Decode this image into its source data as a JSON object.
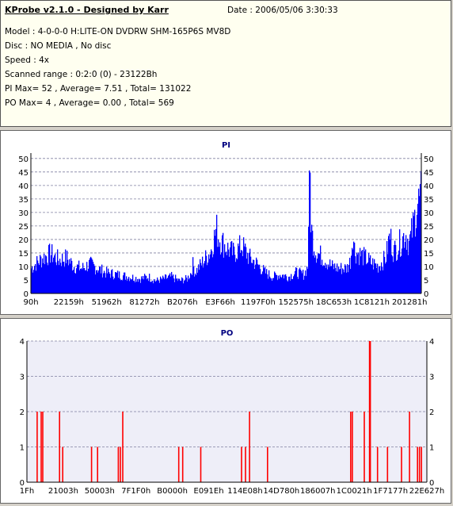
{
  "info": {
    "title": "KProbe v2.1.0 - Designed by Karr",
    "date": "Date : 2006/05/06 3:30:33",
    "lines": [
      "Model : 4-0-0-0 H:LITE-ON DVDRW SHM-165P6S MV8D",
      "Disc : NO MEDIA , No disc",
      "Speed : 4x",
      "Scanned range : 0:2:0 (0) - 23122Bh",
      "PI Max= 52 , Average= 7.51 , Total= 131022",
      "PO Max= 4 , Average= 0.00 , Total= 569"
    ]
  },
  "colors": {
    "pi": "#0000ff",
    "po": "#ff0000",
    "grid": "#8080a0",
    "plot_bg_po": "#eeeef8"
  },
  "chart_data": [
    {
      "type": "bar",
      "title": "PI",
      "ylim": [
        0,
        52
      ],
      "yticks": [
        0,
        5,
        10,
        15,
        20,
        25,
        30,
        35,
        40,
        45,
        50
      ],
      "xtick_labels": [
        "90h",
        "22159h",
        "51962h",
        "81272h",
        "B2076h",
        "E3F66h",
        "1197F0h",
        "152575h",
        "18C653h",
        "1C8121h",
        "201281h"
      ],
      "grid": true,
      "envelope": [
        [
          0,
          12
        ],
        [
          0.01,
          14
        ],
        [
          0.03,
          17
        ],
        [
          0.05,
          19
        ],
        [
          0.07,
          16
        ],
        [
          0.09,
          17
        ],
        [
          0.11,
          13
        ],
        [
          0.13,
          12
        ],
        [
          0.15,
          14
        ],
        [
          0.17,
          12
        ],
        [
          0.19,
          10
        ],
        [
          0.22,
          9
        ],
        [
          0.25,
          8
        ],
        [
          0.28,
          7
        ],
        [
          0.3,
          8
        ],
        [
          0.32,
          6
        ],
        [
          0.34,
          7
        ],
        [
          0.36,
          8
        ],
        [
          0.38,
          6
        ],
        [
          0.4,
          7
        ],
        [
          0.41,
          10
        ],
        [
          0.415,
          14
        ],
        [
          0.42,
          10
        ],
        [
          0.44,
          15
        ],
        [
          0.46,
          20
        ],
        [
          0.47,
          27
        ],
        [
          0.475,
          31
        ],
        [
          0.48,
          27
        ],
        [
          0.5,
          22
        ],
        [
          0.52,
          19
        ],
        [
          0.54,
          23
        ],
        [
          0.56,
          17
        ],
        [
          0.58,
          14
        ],
        [
          0.6,
          10
        ],
        [
          0.62,
          8
        ],
        [
          0.64,
          9
        ],
        [
          0.66,
          8
        ],
        [
          0.68,
          10
        ],
        [
          0.7,
          9
        ],
        [
          0.71,
          13
        ],
        [
          0.712,
          30
        ],
        [
          0.714,
          52
        ],
        [
          0.716,
          42
        ],
        [
          0.72,
          28
        ],
        [
          0.73,
          20
        ],
        [
          0.75,
          17
        ],
        [
          0.77,
          13
        ],
        [
          0.79,
          12
        ],
        [
          0.81,
          12
        ],
        [
          0.82,
          16
        ],
        [
          0.825,
          30
        ],
        [
          0.83,
          20
        ],
        [
          0.85,
          18
        ],
        [
          0.87,
          15
        ],
        [
          0.89,
          13
        ],
        [
          0.91,
          17
        ],
        [
          0.92,
          28
        ],
        [
          0.93,
          20
        ],
        [
          0.95,
          25
        ],
        [
          0.96,
          29
        ],
        [
          0.97,
          24
        ],
        [
          0.98,
          32
        ],
        [
          0.99,
          42
        ],
        [
          1,
          46
        ]
      ]
    },
    {
      "type": "bar",
      "title": "PO",
      "ylim": [
        0,
        4
      ],
      "yticks": [
        0,
        1,
        2,
        3,
        4
      ],
      "xtick_labels": [
        "1Fh",
        "21003h",
        "50003h",
        "7F1F0h",
        "B0000h",
        "E091Eh",
        "114E08h",
        "14D780h",
        "186007h",
        "1C0021h",
        "1F7177h",
        "22E627h"
      ],
      "grid": true,
      "spikes": [
        [
          0.024,
          2
        ],
        [
          0.034,
          2
        ],
        [
          0.038,
          2
        ],
        [
          0.08,
          2
        ],
        [
          0.088,
          1
        ],
        [
          0.16,
          1
        ],
        [
          0.175,
          1
        ],
        [
          0.227,
          1
        ],
        [
          0.232,
          1
        ],
        [
          0.238,
          2
        ],
        [
          0.378,
          1
        ],
        [
          0.388,
          1
        ],
        [
          0.433,
          1
        ],
        [
          0.535,
          1
        ],
        [
          0.545,
          1
        ],
        [
          0.555,
          2
        ],
        [
          0.6,
          1
        ],
        [
          0.808,
          2
        ],
        [
          0.812,
          2
        ],
        [
          0.842,
          2
        ],
        [
          0.855,
          4
        ],
        [
          0.857,
          4
        ],
        [
          0.875,
          1
        ],
        [
          0.9,
          1
        ],
        [
          0.935,
          1
        ],
        [
          0.955,
          2
        ],
        [
          0.975,
          1
        ],
        [
          0.98,
          1
        ],
        [
          0.985,
          1
        ]
      ]
    }
  ]
}
